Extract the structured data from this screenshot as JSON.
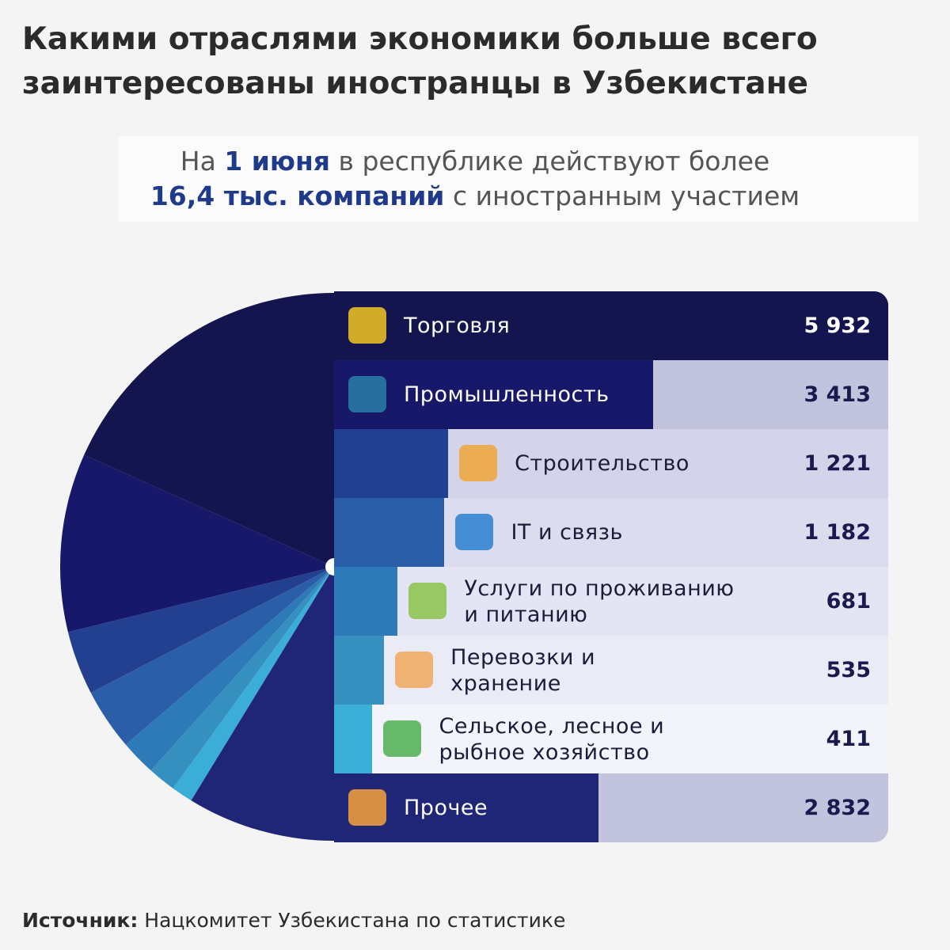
{
  "header": {
    "title": [
      "Какими отраслями экономики больше всего",
      "заинтересованы иностранцы в Узбекистане"
    ],
    "subtitle": [
      "На",
      "1 июня",
      "в республике действуют более",
      "16,4 тыс. компаний",
      "с иностранным участием"
    ]
  },
  "chart_data": {
    "type": "half-pie-bar",
    "categories": [
      "Торговля",
      "Промышленность",
      "Строительство",
      "IT и связь",
      "Услуги по проживанию\nи питанию",
      "Перевозки и\nхранение",
      "Сельское, лесное и\nрыбное хозяйство",
      "Прочее"
    ],
    "values": [
      5932,
      3413,
      1221,
      1182,
      681,
      535,
      411,
      2832
    ],
    "value_labels": [
      "5 932",
      "3 413",
      "1 221",
      "1 182",
      "681",
      "535",
      "411",
      "2 832"
    ],
    "colors": [
      "#14144f",
      "#17186a",
      "#233f8f",
      "#2a5ea8",
      "#2e7ab8",
      "#3590c0",
      "#3aaed6",
      "#1f2577"
    ]
  },
  "footer": {
    "source_label": "Источник:",
    "source": "Нацкомитет Узбекистана по статистике"
  }
}
